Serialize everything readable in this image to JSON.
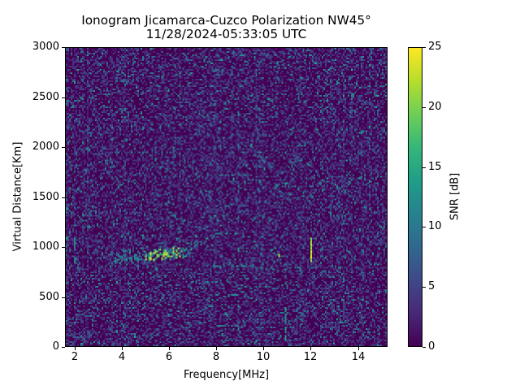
{
  "chart_data": {
    "type": "heatmap",
    "title": "Ionogram Jicamarca-Cuzco Polarization NW45°",
    "subtitle": "11/28/2024-05:33:05 UTC",
    "xlabel": "Frequency[MHz]",
    "ylabel": "Virtual Distance[Km]",
    "colorbar_label": "SNR [dB]",
    "colormap": "viridis",
    "xlim": [
      1.6,
      15.25
    ],
    "ylim": [
      0,
      3000
    ],
    "clim": [
      0,
      25
    ],
    "x_ticks": [
      2,
      4,
      6,
      8,
      10,
      12,
      14
    ],
    "y_ticks": [
      0,
      500,
      1000,
      1500,
      2000,
      2500,
      3000
    ],
    "colorbar_ticks": [
      0,
      5,
      10,
      15,
      20,
      25
    ],
    "grid": false,
    "background_noise_snr_db": [
      0,
      6
    ],
    "features": [
      {
        "name": "F-layer trace",
        "kind": "trace",
        "freq_mhz": [
          3.5,
          4.5,
          5.0,
          5.5,
          6.0,
          6.5,
          6.9
        ],
        "range_km": [
          870,
          890,
          910,
          930,
          940,
          960,
          990
        ],
        "peak_snr_db": 25
      },
      {
        "name": "2 MHz vertical line",
        "kind": "vline",
        "freq_mhz": 1.95,
        "range_km": [
          850,
          1100
        ],
        "snr_db": 12
      },
      {
        "name": "12 MHz vertical line",
        "kind": "vline",
        "freq_mhz": 12.0,
        "range_km": [
          870,
          1100
        ],
        "snr_db": 25
      },
      {
        "name": "10.6 MHz spot",
        "kind": "spot",
        "freq_mhz": 10.6,
        "range_km": 930,
        "snr_db": 22
      },
      {
        "name": "10.9 MHz interference",
        "kind": "vline",
        "freq_mhz": 10.9,
        "range_km": [
          80,
          400
        ],
        "snr_db": 15
      },
      {
        "name": "8-9 MHz multi-hop streaks",
        "kind": "hstreaks",
        "freq_mhz": [
          7.9,
          9.2
        ],
        "range_km": [
          2010,
          1730,
          1420,
          1150,
          820,
          520,
          220
        ],
        "snr_db": 12
      }
    ]
  },
  "labels": {
    "title": "Ionogram Jicamarca-Cuzco Polarization NW45°",
    "subtitle": "11/28/2024-05:33:05 UTC",
    "xlabel": "Frequency[MHz]",
    "ylabel": "Virtual Distance[Km]",
    "colorbar_label": "SNR [dB]",
    "x_ticks": [
      "2",
      "4",
      "6",
      "8",
      "10",
      "12",
      "14"
    ],
    "y_ticks": [
      "0",
      "500",
      "1000",
      "1500",
      "2000",
      "2500",
      "3000"
    ],
    "c_ticks": [
      "0",
      "5",
      "10",
      "15",
      "20",
      "25"
    ]
  }
}
